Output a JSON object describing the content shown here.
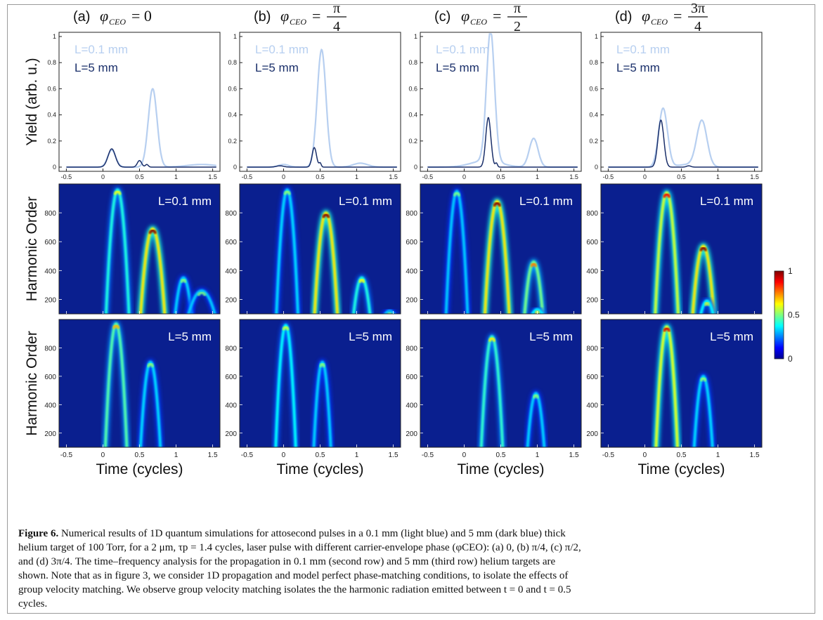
{
  "figure": {
    "panel_titles": [
      {
        "letter": "(a)",
        "var": "φ",
        "sub": "CEO",
        "eq": "= 0",
        "num": "",
        "den": ""
      },
      {
        "letter": "(b)",
        "var": "φ",
        "sub": "CEO",
        "eq": "=",
        "num": "π",
        "den": "4"
      },
      {
        "letter": "(c)",
        "var": "φ",
        "sub": "CEO",
        "eq": "=",
        "num": "π",
        "den": "2"
      },
      {
        "letter": "(d)",
        "var": "φ",
        "sub": "CEO",
        "eq": "=",
        "num": "3π",
        "den": "4"
      }
    ],
    "row_ylabels": [
      "Yield (arb. u.)",
      "Harmonic Order",
      "Harmonic Order"
    ],
    "xlabel": "Time (cycles)",
    "xticks": [
      "-0.5",
      "0",
      "0.5",
      "1",
      "1.5"
    ],
    "yield_yticks": [
      "0",
      "0.2",
      "0.4",
      "0.6",
      "0.8",
      "1"
    ],
    "order_yticks": [
      "200",
      "400",
      "600",
      "800"
    ],
    "legend": {
      "light": "L=0.1 mm",
      "dark": "L=5 mm"
    },
    "map_labels": {
      "row2": "L=0.1 mm",
      "row3": "L=5 mm"
    },
    "colorbar_ticks": [
      "0",
      "0.5",
      "1"
    ]
  },
  "colors": {
    "light_blue": "#b7cff0",
    "dark_blue": "#1a2f6a",
    "map_bg": "#0a1f8f"
  },
  "chart_data": [
    {
      "type": "line",
      "title": "(a) φCEO = 0",
      "ylabel": "Yield (arb. u.)",
      "xlim": [
        -0.6,
        1.6
      ],
      "ylim": [
        0,
        1
      ],
      "series": [
        {
          "name": "L=0.1 mm",
          "peaks": [
            [
              0.12,
              0.13,
              0.055
            ],
            [
              0.68,
              0.6,
              0.06
            ],
            [
              1.35,
              0.02,
              0.2
            ]
          ]
        },
        {
          "name": "L=5 mm",
          "peaks": [
            [
              0.12,
              0.14,
              0.05
            ],
            [
              0.5,
              0.05,
              0.03
            ],
            [
              0.6,
              0.02,
              0.02
            ]
          ]
        }
      ]
    },
    {
      "type": "line",
      "title": "(b) φCEO = π/4",
      "ylabel": "Yield (arb. u.)",
      "xlim": [
        -0.6,
        1.6
      ],
      "ylim": [
        0,
        1
      ],
      "series": [
        {
          "name": "L=0.1 mm",
          "peaks": [
            [
              0.52,
              0.9,
              0.06
            ],
            [
              0.0,
              0.02,
              0.07
            ],
            [
              1.05,
              0.03,
              0.1
            ]
          ]
        },
        {
          "name": "L=5 mm",
          "peaks": [
            [
              0.42,
              0.15,
              0.03
            ],
            [
              0.5,
              0.03,
              0.015
            ],
            [
              -0.05,
              0.01,
              0.05
            ]
          ]
        }
      ]
    },
    {
      "type": "line",
      "title": "(c) φCEO = π/2",
      "ylabel": "Yield (arb. u.)",
      "xlim": [
        -0.6,
        1.6
      ],
      "ylim": [
        0,
        1
      ],
      "series": [
        {
          "name": "L=0.1 mm",
          "peaks": [
            [
              0.36,
              1.0,
              0.055
            ],
            [
              0.95,
              0.22,
              0.06
            ],
            [
              0.3,
              0.05,
              0.2
            ]
          ]
        },
        {
          "name": "L=5 mm",
          "peaks": [
            [
              0.33,
              0.38,
              0.035
            ],
            [
              0.44,
              0.03,
              0.015
            ]
          ]
        }
      ]
    },
    {
      "type": "line",
      "title": "(d) φCEO = 3π/4",
      "ylabel": "Yield (arb. u.)",
      "xlim": [
        -0.6,
        1.6
      ],
      "ylim": [
        0,
        1
      ],
      "series": [
        {
          "name": "L=0.1 mm",
          "peaks": [
            [
              0.25,
              0.45,
              0.06
            ],
            [
              0.78,
              0.35,
              0.07
            ],
            [
              0.6,
              0.02,
              0.15
            ]
          ]
        },
        {
          "name": "L=5 mm",
          "peaks": [
            [
              0.22,
              0.36,
              0.04
            ],
            [
              0.6,
              0.01,
              0.03
            ]
          ]
        }
      ]
    },
    {
      "type": "heatmap",
      "rows": [
        "L=0.1 mm",
        "L=5 mm"
      ],
      "xlabel": "Time (cycles)",
      "ylabel": "Harmonic Order",
      "xlim": [
        -0.6,
        1.6
      ],
      "ylim": [
        100,
        1000
      ],
      "clim": [
        0,
        1
      ],
      "arches_description": "each arch: [peak time (cycles), peak order, half-width (cycles), intensity 0-1]",
      "panels": [
        {
          "panel": "a",
          "row2": [
            [
              0.2,
              960,
              0.16,
              0.3
            ],
            [
              0.68,
              690,
              0.17,
              1.0
            ],
            [
              1.1,
              350,
              0.12,
              0.1
            ],
            [
              1.35,
              260,
              0.2,
              0.08
            ]
          ],
          "row3": [
            [
              0.18,
              970,
              0.15,
              0.45
            ],
            [
              0.65,
              700,
              0.14,
              0.12
            ]
          ]
        },
        {
          "panel": "b",
          "row2": [
            [
              0.05,
              960,
              0.15,
              0.12
            ],
            [
              0.58,
              800,
              0.16,
              1.0
            ],
            [
              1.07,
              350,
              0.12,
              0.3
            ],
            [
              1.45,
              120,
              0.1,
              0.05
            ]
          ],
          "row3": [
            [
              0.03,
              960,
              0.14,
              0.22
            ],
            [
              0.53,
              700,
              0.12,
              0.1
            ]
          ]
        },
        {
          "panel": "c",
          "row2": [
            [
              -0.1,
              950,
              0.15,
              0.08
            ],
            [
              0.45,
              880,
              0.17,
              1.0
            ],
            [
              0.95,
              460,
              0.13,
              0.55
            ],
            [
              1.0,
              130,
              0.1,
              0.2
            ]
          ],
          "row3": [
            [
              0.38,
              880,
              0.15,
              0.35
            ],
            [
              0.98,
              480,
              0.12,
              0.1
            ]
          ]
        },
        {
          "panel": "d",
          "row2": [
            [
              0.3,
              940,
              0.16,
              0.8
            ],
            [
              0.8,
              570,
              0.15,
              1.0
            ],
            [
              0.85,
              190,
              0.1,
              0.2
            ]
          ],
          "row3": [
            [
              0.3,
              950,
              0.15,
              0.85
            ],
            [
              0.8,
              600,
              0.13,
              0.12
            ]
          ]
        }
      ]
    }
  ],
  "caption": {
    "label": "Figure 6.",
    "lines": [
      "Numerical results of 1D quantum simulations for attosecond pulses in a 0.1 mm (light blue) and 5 mm (dark blue) thick",
      "helium target of 100 Torr, for a 2 μm, τp = 1.4 cycles, laser pulse with different carrier-envelope phase (φCEO): (a) 0, (b) π/4, (c) π/2,",
      "and (d) 3π/4. The time–frequency analysis for the propagation in 0.1 mm (second row) and 5 mm (third row) helium targets are",
      "shown. Note that as in figure 3, we consider 1D propagation and model perfect phase-matching conditions, to isolate the effects of",
      "group velocity matching. We observe group velocity matching isolates the the harmonic radiation emitted between t = 0 and t = 0.5",
      "cycles."
    ]
  }
}
